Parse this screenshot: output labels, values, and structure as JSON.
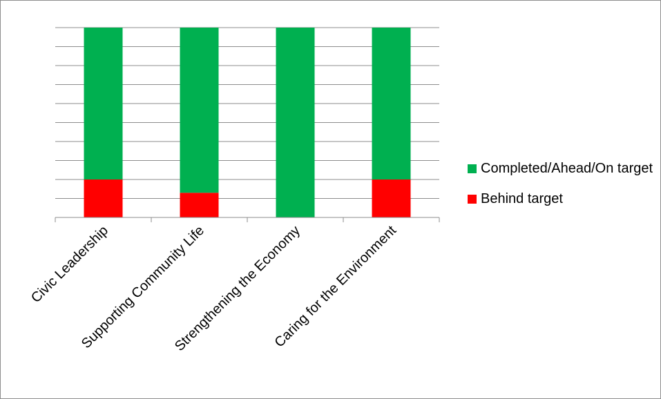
{
  "chart_data": {
    "type": "bar",
    "stacked": true,
    "categories": [
      "Civic Leadership",
      "Supporting Community Life",
      "Strengthening the Economy",
      "Caring for the Environment"
    ],
    "series": [
      {
        "name": "Behind target",
        "color": "#ff0000",
        "values": [
          20,
          13,
          0,
          20
        ]
      },
      {
        "name": "Completed/Ahead/On target",
        "color": "#00b050",
        "values": [
          80,
          87,
          100,
          80
        ]
      }
    ],
    "ylim": [
      0,
      100
    ],
    "grid": true,
    "legend_position": "right"
  },
  "legend": {
    "items": [
      {
        "label": "Completed/Ahead/On target",
        "color": "#00b050"
      },
      {
        "label": "Behind target",
        "color": "#ff0000"
      }
    ]
  }
}
